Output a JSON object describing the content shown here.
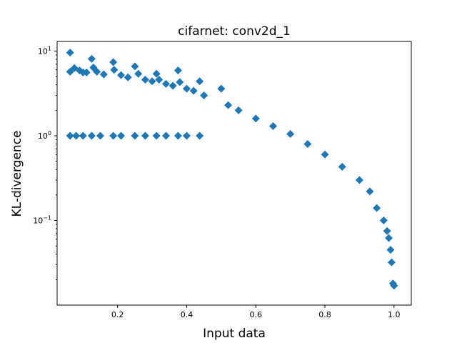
{
  "chart_data": {
    "type": "scatter",
    "title": "cifarnet: conv2d_1",
    "xlabel": "Input data",
    "ylabel": "KL-divergence",
    "xlim": [
      0.025,
      1.05
    ],
    "ylim": [
      0.01,
      13.0
    ],
    "yscale": "log",
    "grid": false,
    "marker": "diamond",
    "color": "#1f77b4",
    "x_ticks": [
      {
        "value": 0.2,
        "label": "0.2"
      },
      {
        "value": 0.4,
        "label": "0.4"
      },
      {
        "value": 0.6,
        "label": "0.6"
      },
      {
        "value": 0.8,
        "label": "0.8"
      },
      {
        "value": 1.0,
        "label": "1.0"
      }
    ],
    "y_ticks": [
      {
        "value": 0.1,
        "base": "10",
        "exp": "−1"
      },
      {
        "value": 1,
        "base": "10",
        "exp": "0"
      },
      {
        "value": 10,
        "base": "10",
        "exp": "1"
      }
    ],
    "series": [
      {
        "points": [
          [
            0.0625,
            1.0
          ],
          [
            0.08,
            1.0
          ],
          [
            0.1,
            1.0
          ],
          [
            0.125,
            1.0
          ],
          [
            0.15,
            1.0
          ],
          [
            0.1875,
            1.0
          ],
          [
            0.21,
            1.0
          ],
          [
            0.25,
            1.0
          ],
          [
            0.28,
            1.0
          ],
          [
            0.3125,
            1.0
          ],
          [
            0.34,
            1.0
          ],
          [
            0.375,
            1.0
          ],
          [
            0.4,
            1.0
          ],
          [
            0.4375,
            1.0
          ],
          [
            0.0625,
            9.6
          ],
          [
            0.0625,
            5.7
          ],
          [
            0.075,
            6.3
          ],
          [
            0.09,
            5.9
          ],
          [
            0.1,
            5.6
          ],
          [
            0.11,
            5.6
          ],
          [
            0.125,
            8.1
          ],
          [
            0.13,
            6.4
          ],
          [
            0.14,
            5.7
          ],
          [
            0.16,
            5.3
          ],
          [
            0.1875,
            7.4
          ],
          [
            0.19,
            6.0
          ],
          [
            0.21,
            5.2
          ],
          [
            0.23,
            4.9
          ],
          [
            0.25,
            6.6
          ],
          [
            0.26,
            5.4
          ],
          [
            0.28,
            4.6
          ],
          [
            0.3,
            4.4
          ],
          [
            0.3125,
            5.4
          ],
          [
            0.32,
            4.6
          ],
          [
            0.34,
            4.1
          ],
          [
            0.36,
            3.9
          ],
          [
            0.375,
            5.9
          ],
          [
            0.38,
            4.3
          ],
          [
            0.4,
            3.6
          ],
          [
            0.42,
            3.4
          ],
          [
            0.4375,
            4.4
          ],
          [
            0.45,
            3.0
          ],
          [
            0.5,
            3.6
          ],
          [
            0.52,
            2.3
          ],
          [
            0.55,
            2.0
          ],
          [
            0.6,
            1.6
          ],
          [
            0.65,
            1.3
          ],
          [
            0.7,
            1.05
          ],
          [
            0.75,
            0.8
          ],
          [
            0.8,
            0.6
          ],
          [
            0.85,
            0.43
          ],
          [
            0.9,
            0.3
          ],
          [
            0.93,
            0.22
          ],
          [
            0.95,
            0.14
          ],
          [
            0.97,
            0.1
          ],
          [
            0.98,
            0.075
          ],
          [
            0.985,
            0.062
          ],
          [
            0.99,
            0.045
          ],
          [
            0.993,
            0.032
          ],
          [
            0.997,
            0.018
          ],
          [
            1.0,
            0.017
          ]
        ]
      }
    ]
  }
}
